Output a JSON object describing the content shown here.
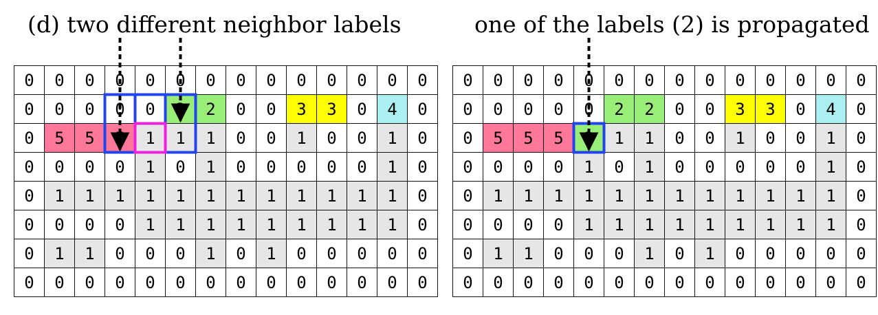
{
  "left_panel": {
    "title": "(d) two different neighbor labels",
    "rows": [
      [
        "0",
        "0",
        "0",
        "0",
        "0",
        "0",
        "0",
        "0",
        "0",
        "0",
        "0",
        "0",
        "0",
        "0"
      ],
      [
        "0",
        "0",
        "0",
        "0",
        "0",
        "2",
        "2",
        "0",
        "0",
        "3",
        "3",
        "0",
        "4",
        "0"
      ],
      [
        "0",
        "5",
        "5",
        "5",
        "1",
        "1",
        "1",
        "0",
        "0",
        "1",
        "0",
        "0",
        "1",
        "0"
      ],
      [
        "0",
        "0",
        "0",
        "0",
        "1",
        "0",
        "1",
        "0",
        "0",
        "0",
        "0",
        "0",
        "1",
        "0"
      ],
      [
        "0",
        "1",
        "1",
        "1",
        "1",
        "1",
        "1",
        "1",
        "1",
        "1",
        "1",
        "1",
        "1",
        "0"
      ],
      [
        "0",
        "0",
        "0",
        "0",
        "1",
        "1",
        "1",
        "1",
        "1",
        "1",
        "1",
        "1",
        "1",
        "0"
      ],
      [
        "0",
        "1",
        "1",
        "0",
        "0",
        "0",
        "1",
        "0",
        "1",
        "0",
        "0",
        "0",
        "0",
        "0"
      ],
      [
        "0",
        "0",
        "0",
        "0",
        "0",
        "0",
        "0",
        "0",
        "0",
        "0",
        "0",
        "0",
        "0",
        "0"
      ]
    ]
  },
  "right_panel": {
    "title": "one of the labels (2) is propagated",
    "rows": [
      [
        "0",
        "0",
        "0",
        "0",
        "0",
        "0",
        "0",
        "0",
        "0",
        "0",
        "0",
        "0",
        "0",
        "0"
      ],
      [
        "0",
        "0",
        "0",
        "0",
        "0",
        "2",
        "2",
        "0",
        "0",
        "3",
        "3",
        "0",
        "4",
        "0"
      ],
      [
        "0",
        "5",
        "5",
        "5",
        "2",
        "1",
        "1",
        "0",
        "0",
        "1",
        "0",
        "0",
        "1",
        "0"
      ],
      [
        "0",
        "0",
        "0",
        "0",
        "1",
        "0",
        "1",
        "0",
        "0",
        "0",
        "0",
        "0",
        "1",
        "0"
      ],
      [
        "0",
        "1",
        "1",
        "1",
        "1",
        "1",
        "1",
        "1",
        "1",
        "1",
        "1",
        "1",
        "1",
        "0"
      ],
      [
        "0",
        "0",
        "0",
        "0",
        "1",
        "1",
        "1",
        "1",
        "1",
        "1",
        "1",
        "1",
        "1",
        "0"
      ],
      [
        "0",
        "1",
        "1",
        "0",
        "0",
        "0",
        "1",
        "0",
        "1",
        "0",
        "0",
        "0",
        "0",
        "0"
      ],
      [
        "0",
        "0",
        "0",
        "0",
        "0",
        "0",
        "0",
        "0",
        "0",
        "0",
        "0",
        "0",
        "0",
        "0"
      ]
    ]
  },
  "colors": {
    "label_1": "#e6e6e6",
    "label_2": "#99ee77",
    "label_3": "#ffff00",
    "label_4": "#aaf0f0",
    "label_5": "#ff7799",
    "neighbor_box": "#2244ee",
    "current_box": "#ee22dd",
    "arrow": "#000000"
  }
}
